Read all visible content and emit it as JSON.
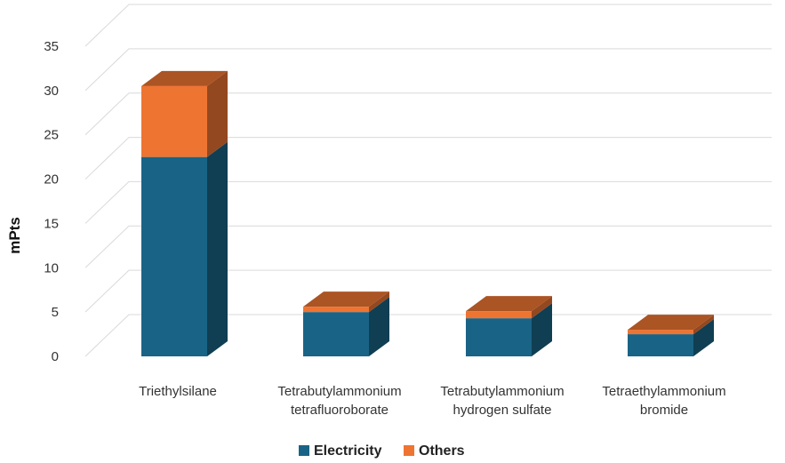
{
  "chart_data": {
    "type": "bar",
    "stacked": true,
    "three_d": true,
    "categories": [
      [
        "Triethylsilane"
      ],
      [
        "Tetrabutylammonium",
        "tetrafluoroborate"
      ],
      [
        "Tetrabutylammonium",
        "hydrogen sulfate"
      ],
      [
        "Tetraethylammonium",
        "bromide"
      ]
    ],
    "series": [
      {
        "name": "Electricity",
        "values": [
          22.5,
          5.0,
          4.3,
          2.5
        ],
        "color": "#196486"
      },
      {
        "name": "Others",
        "values": [
          8.0,
          0.6,
          0.8,
          0.5
        ],
        "color": "#EE7432"
      }
    ],
    "ylabel": "mPts",
    "ylim": [
      0,
      35
    ],
    "yticks": [
      0,
      5,
      10,
      15,
      20,
      25,
      30,
      35
    ],
    "grid": true,
    "legend": "bottom"
  }
}
